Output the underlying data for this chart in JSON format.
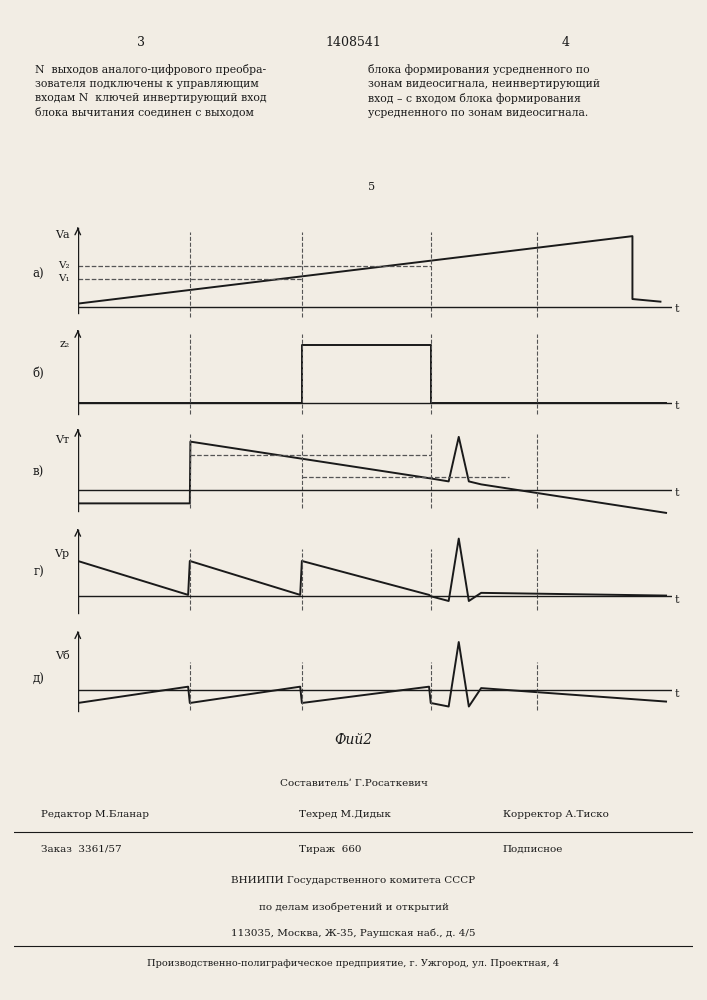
{
  "background_color": "#f2ede4",
  "line_color": "#1a1a1a",
  "dashed_color": "#555555",
  "t1": 0.2,
  "t2": 0.4,
  "t3": 0.63,
  "t4": 0.82,
  "tmax": 1.0,
  "header_text_left": "N  выходов аналого-цифрового преобра-\nзователя подключены к управляющим\nвходам N  ключей инвертирующий вход\nблока вычитания соединен с выходом",
  "header_text_right": "блока формирования усредненного по\nзонам видеосигнала, неинвертирующий\nвход – с входом блока формирования\nусредненного по зонам видеосигнала.",
  "page_left": "3",
  "page_center": "1408541",
  "page_right": "4",
  "num5": "5",
  "fig_caption": "Фий2",
  "footer1_center": "Составительʹ Г.Росаткевич",
  "footer2_left": "Редактор М.Бланар",
  "footer2_center": "Техред М.Дидык",
  "footer2_right": "Корректор А.Тиско",
  "footer3_left": "Заказ  3361/57",
  "footer3_center": "Тираж  660",
  "footer3_right": "Подписное",
  "footer4": "ВНИИПИ Государственного комитета СССР",
  "footer5": "по делам изобретений и открытий",
  "footer6": "113035, Москва, Ж-35, Раушская наб., д. 4/5",
  "footer7": "Производственно-полиграфическое предприятие, г. Ужгород, ул. Проектная, 4"
}
